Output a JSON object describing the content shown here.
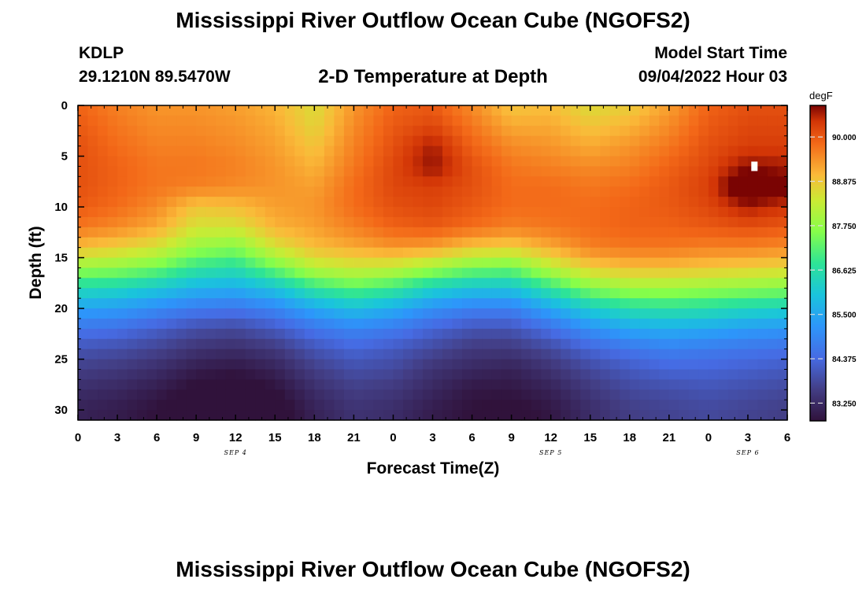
{
  "header": {
    "title": "Mississippi River Outflow Ocean Cube (NGOFS2)",
    "station_id": "KDLP",
    "station_coords": "29.1210N  89.5470W",
    "product": "2-D Temperature at Depth",
    "model_start_label": "Model Start Time",
    "model_start_time": "09/04/2022 Hour 03"
  },
  "footer": {
    "title": "Mississippi River Outflow Ocean Cube (NGOFS2)"
  },
  "chart_data": {
    "type": "heatmap",
    "title": "2-D Temperature at Depth",
    "xlabel": "Forecast Time(Z)",
    "ylabel": "Depth (ft)",
    "x_hours_since_start": [
      0,
      3,
      6,
      9,
      12,
      15,
      18,
      21,
      24,
      27,
      30,
      33,
      36,
      39,
      42,
      45,
      48,
      51,
      54
    ],
    "x_tick_labels": [
      "0",
      "3",
      "6",
      "9",
      "12",
      "15",
      "18",
      "21",
      "0",
      "3",
      "6",
      "9",
      "12",
      "15",
      "18",
      "21",
      "0",
      "3",
      "6"
    ],
    "date_labels": [
      {
        "text": "SEP 4",
        "hour": 12
      },
      {
        "text": "SEP 5",
        "hour": 36
      },
      {
        "text": "SEP 6",
        "hour": 51
      }
    ],
    "y_tick_labels": [
      "0",
      "5",
      "10",
      "15",
      "20",
      "25",
      "30"
    ],
    "ylim": [
      31,
      0
    ],
    "depth_ft": [
      0,
      2,
      4,
      6,
      8,
      10,
      12,
      14,
      16,
      18,
      20,
      22,
      24,
      26,
      28,
      30
    ],
    "temperature_degF": [
      [
        89.9,
        89.6,
        89.4,
        89.4,
        89.3,
        89.1,
        88.6,
        89.4,
        89.9,
        90.0,
        89.5,
        88.9,
        89.0,
        88.6,
        88.8,
        89.3,
        89.9,
        90.1,
        90.1
      ],
      [
        90.0,
        89.7,
        89.5,
        89.5,
        89.4,
        89.2,
        88.7,
        89.5,
        90.0,
        90.2,
        89.7,
        89.2,
        89.2,
        88.9,
        89.1,
        89.5,
        90.0,
        90.2,
        90.2
      ],
      [
        90.1,
        89.8,
        89.6,
        89.6,
        89.5,
        89.3,
        88.9,
        89.6,
        90.1,
        90.6,
        89.9,
        89.5,
        89.4,
        89.2,
        89.4,
        89.7,
        90.1,
        90.3,
        90.3
      ],
      [
        90.1,
        89.9,
        89.7,
        89.7,
        89.6,
        89.4,
        89.1,
        89.7,
        90.2,
        90.7,
        90.1,
        89.7,
        89.6,
        89.5,
        89.6,
        89.9,
        90.2,
        90.7,
        90.6
      ],
      [
        90.1,
        89.9,
        89.7,
        89.6,
        89.5,
        89.4,
        89.3,
        89.8,
        90.2,
        90.3,
        90.1,
        89.8,
        89.8,
        89.7,
        89.8,
        90.0,
        90.3,
        91.3,
        90.9
      ],
      [
        90.0,
        89.8,
        89.5,
        88.9,
        89.0,
        89.3,
        89.4,
        89.8,
        90.1,
        90.2,
        90.0,
        89.8,
        89.8,
        89.8,
        89.9,
        90.0,
        90.2,
        90.6,
        90.4
      ],
      [
        89.7,
        89.5,
        89.2,
        88.5,
        88.5,
        89.1,
        89.3,
        89.6,
        89.9,
        90.0,
        89.8,
        89.6,
        89.7,
        89.8,
        89.9,
        89.9,
        90.0,
        90.1,
        90.0
      ],
      [
        89.0,
        88.8,
        88.5,
        87.8,
        87.6,
        88.5,
        89.0,
        89.2,
        89.4,
        89.3,
        88.9,
        88.8,
        89.2,
        89.6,
        89.7,
        89.7,
        89.6,
        89.6,
        89.5
      ],
      [
        87.8,
        87.7,
        87.4,
        86.8,
        86.6,
        87.4,
        88.2,
        88.4,
        88.3,
        87.9,
        87.5,
        87.4,
        88.2,
        88.8,
        89.0,
        89.0,
        88.9,
        88.8,
        88.7
      ],
      [
        86.5,
        86.4,
        86.1,
        85.7,
        85.6,
        86.0,
        86.8,
        87.2,
        86.9,
        86.3,
        86.0,
        86.0,
        86.8,
        87.6,
        87.9,
        87.9,
        87.8,
        87.7,
        87.6
      ],
      [
        85.4,
        85.3,
        85.0,
        84.7,
        84.6,
        84.9,
        85.5,
        85.9,
        85.6,
        85.1,
        84.8,
        84.8,
        85.5,
        86.2,
        86.6,
        86.7,
        86.6,
        86.4,
        86.3
      ],
      [
        84.6,
        84.5,
        84.2,
        83.9,
        83.8,
        84.1,
        84.6,
        84.9,
        84.7,
        84.3,
        84.0,
        84.0,
        84.5,
        85.1,
        85.5,
        85.6,
        85.5,
        85.3,
        85.2
      ],
      [
        84.0,
        83.9,
        83.7,
        83.4,
        83.3,
        83.5,
        84.0,
        84.3,
        84.1,
        83.8,
        83.5,
        83.5,
        83.8,
        84.3,
        84.6,
        84.8,
        84.7,
        84.6,
        84.5
      ],
      [
        83.6,
        83.5,
        83.3,
        83.0,
        82.9,
        83.1,
        83.6,
        83.9,
        83.8,
        83.4,
        83.2,
        83.1,
        83.4,
        83.8,
        84.1,
        84.3,
        84.3,
        84.2,
        84.1
      ],
      [
        83.3,
        83.2,
        83.0,
        82.7,
        82.6,
        82.8,
        83.3,
        83.6,
        83.5,
        83.2,
        82.9,
        82.9,
        83.1,
        83.5,
        83.8,
        83.9,
        84.0,
        83.9,
        83.8
      ],
      [
        83.1,
        83.0,
        82.8,
        82.5,
        82.4,
        82.6,
        83.1,
        83.4,
        83.3,
        83.0,
        82.8,
        82.7,
        82.9,
        83.3,
        83.6,
        83.7,
        83.8,
        83.7,
        83.6
      ]
    ],
    "colorbar": {
      "units": "degF",
      "range": [
        82.8,
        90.8
      ],
      "tick_labels": [
        "90.000",
        "88.875",
        "87.750",
        "86.625",
        "85.500",
        "84.375",
        "83.250"
      ],
      "tick_values": [
        90.0,
        88.875,
        87.75,
        86.625,
        85.5,
        84.375,
        83.25
      ]
    },
    "missing_value_marker": {
      "hour": 51.5,
      "depth_ft": 6
    },
    "grid": false
  }
}
